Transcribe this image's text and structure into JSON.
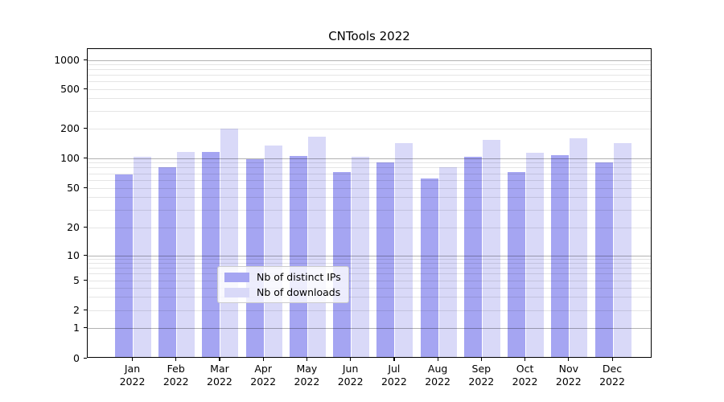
{
  "chart_data": {
    "type": "bar",
    "title": "CNTools 2022",
    "categories": [
      "Jan",
      "Feb",
      "Mar",
      "Apr",
      "May",
      "Jun",
      "Jul",
      "Aug",
      "Sep",
      "Oct",
      "Nov",
      "Dec"
    ],
    "year_label": "2022",
    "series": [
      {
        "name": "Nb of distinct IPs",
        "color": "#a5a5f2",
        "values": [
          66,
          78,
          112,
          95,
          101,
          70,
          87,
          60,
          100,
          70,
          103,
          88
        ]
      },
      {
        "name": "Nb of downloads",
        "color": "#d9d9f8",
        "values": [
          100,
          112,
          192,
          130,
          160,
          100,
          137,
          78,
          148,
          110,
          153,
          138
        ]
      }
    ],
    "xlabel": "",
    "ylabel": "",
    "yscale": "symlog",
    "ylim": [
      0,
      1300
    ],
    "yticks": [
      0,
      1,
      2,
      5,
      10,
      20,
      50,
      100,
      200,
      500,
      1000
    ],
    "grid": true,
    "legend_position": "lower center"
  },
  "colors": {
    "bar_dark": "#a5a5f2",
    "bar_light": "#d9d9f8",
    "grid_major": "rgba(0,0,0,0.30)",
    "grid_minor": "rgba(0,0,0,0.10)",
    "axis": "#000000"
  }
}
